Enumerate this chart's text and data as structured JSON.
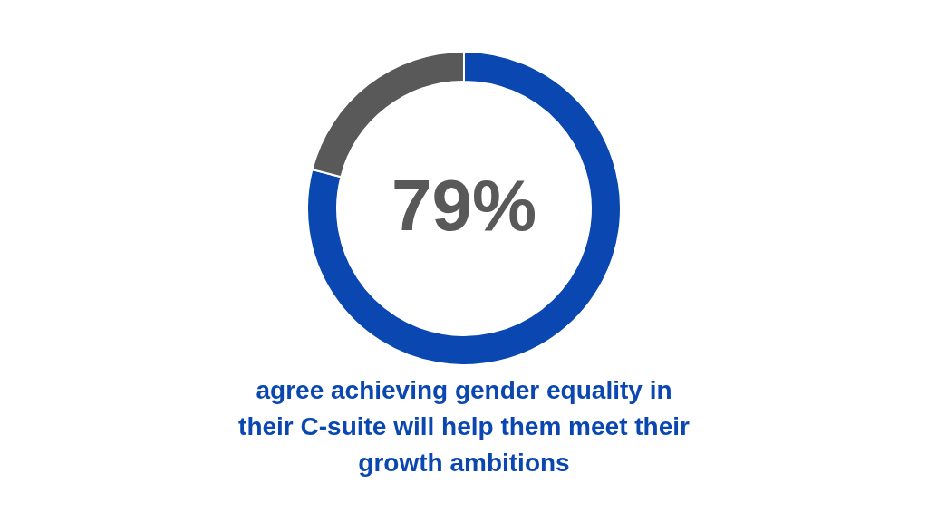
{
  "chart_data": {
    "type": "donut",
    "categories": [
      null,
      null
    ],
    "values": [
      79,
      21
    ],
    "colors": [
      "#0a47b0",
      "#595959"
    ],
    "value_labels": [
      "79%",
      null
    ],
    "annotations": [
      "agree achieving gender equality in\ntheir C-suite will help them meet their\ngrowth ambitions"
    ],
    "legend": false
  }
}
